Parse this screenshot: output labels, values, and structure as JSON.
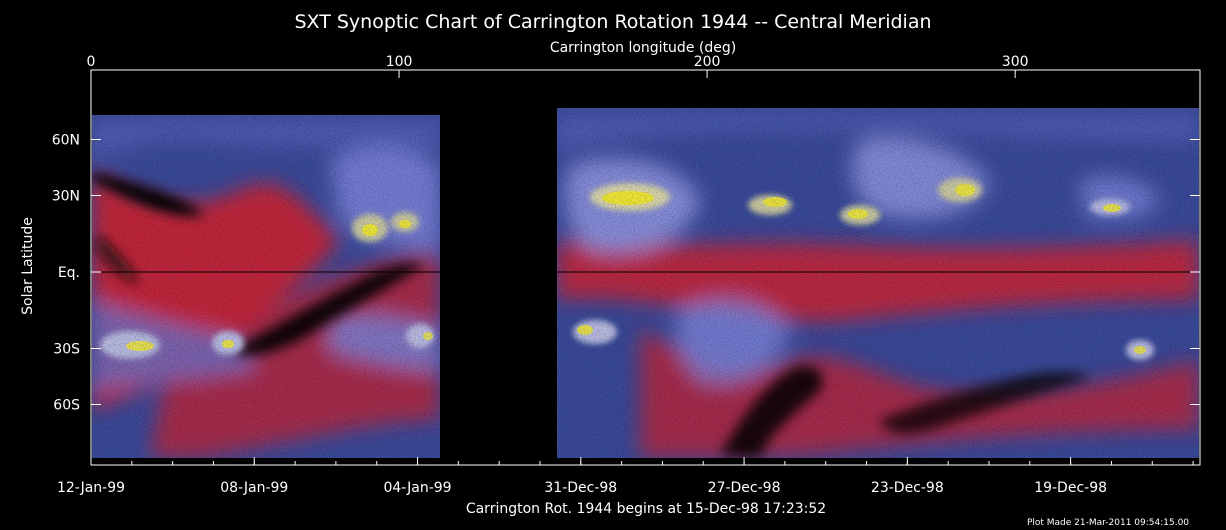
{
  "chart_data": {
    "type": "heatmap",
    "title": "SXT Synoptic Chart of Carrington Rotation 1944 -- Central Meridian",
    "top_axis_label": "Carrington longitude (deg)",
    "ylabel": "Solar Latitude",
    "bottom_label": "Carrington Rot. 1944 begins at 15-Dec-98 17:23:52",
    "footer": "Plot Made 21-Mar-2011 09:54:15.00",
    "xlim": [
      0,
      360
    ],
    "top_ticks": [
      {
        "value": 0,
        "label": "0"
      },
      {
        "value": 100,
        "label": "100"
      },
      {
        "value": 200,
        "label": "200"
      },
      {
        "value": 300,
        "label": "300"
      }
    ],
    "y_ticks": [
      {
        "value": 60,
        "label": "60N"
      },
      {
        "value": 30,
        "label": "30N"
      },
      {
        "value": 0,
        "label": "Eq."
      },
      {
        "value": -30,
        "label": "30S"
      },
      {
        "value": -60,
        "label": "60S"
      }
    ],
    "date_ticks": [
      {
        "value": 0,
        "label": "12-Jan-99"
      },
      {
        "value": 53,
        "label": "08-Jan-99"
      },
      {
        "value": 106,
        "label": "04-Jan-99"
      },
      {
        "value": 159,
        "label": "31-Dec-98"
      },
      {
        "value": 212,
        "label": "27-Dec-98"
      },
      {
        "value": 265,
        "label": "23-Dec-98"
      },
      {
        "value": 318,
        "label": "19-Dec-98"
      }
    ],
    "data_gap_longitude": [
      113,
      152
    ],
    "colors": {
      "background": "#000000",
      "low": "#e0202a",
      "mid": "#3a4a9a",
      "high": "#8c92e0",
      "peak": "#f0e830"
    }
  }
}
